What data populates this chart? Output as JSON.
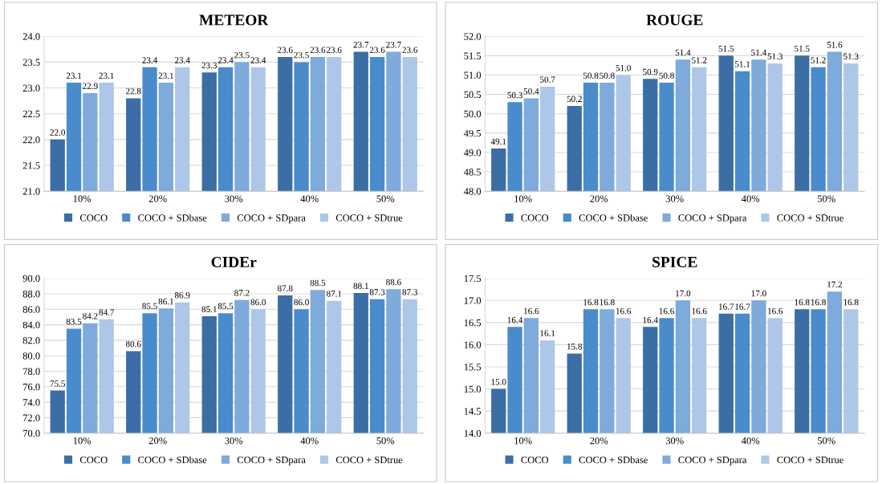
{
  "chart_data": [
    {
      "type": "bar",
      "title": "METEOR",
      "categories": [
        "10%",
        "20%",
        "30%",
        "40%",
        "50%"
      ],
      "grid": "y",
      "legend": "bottom",
      "ylim": [
        21.0,
        24.0
      ],
      "yticks": [
        {
          "value": 21.0,
          "label": "21.0"
        },
        {
          "value": 21.5,
          "label": "21.5"
        },
        {
          "value": 22.0,
          "label": "22.0"
        },
        {
          "value": 22.5,
          "label": "22.5"
        },
        {
          "value": 23.0,
          "label": "23.0"
        },
        {
          "value": 23.5,
          "label": "23.5"
        },
        {
          "value": 24.0,
          "label": "24.0"
        }
      ],
      "series": [
        {
          "name": "COCO",
          "color": "#3b6ea5",
          "values": [
            22.0,
            22.8,
            23.3,
            23.6,
            23.7
          ],
          "value_labels": [
            "22.0",
            "22.8",
            "23.3",
            "23.6",
            "23.7"
          ]
        },
        {
          "name": "COCO + SDbase",
          "color": "#4a8bcb",
          "values": [
            23.1,
            23.4,
            23.4,
            23.5,
            23.6
          ],
          "value_labels": [
            "23.1",
            "23.4",
            "23.4",
            "23.5",
            "23.6"
          ]
        },
        {
          "name": "COCO + SDpara",
          "color": "#7eaadc",
          "values": [
            22.9,
            23.1,
            23.5,
            23.6,
            23.7
          ],
          "value_labels": [
            "22.9",
            "23.1",
            "23.5",
            "23.6",
            "23.7"
          ]
        },
        {
          "name": "COCO + SDtrue",
          "color": "#aec7e8",
          "values": [
            23.1,
            23.4,
            23.4,
            23.6,
            23.6
          ],
          "value_labels": [
            "23.1",
            "23.4",
            "23.4",
            "23.6",
            "23.6"
          ]
        }
      ]
    },
    {
      "type": "bar",
      "title": "ROUGE",
      "categories": [
        "10%",
        "20%",
        "30%",
        "40%",
        "50%"
      ],
      "grid": "y",
      "legend": "bottom",
      "ylim": [
        48.0,
        52.0
      ],
      "yticks": [
        {
          "value": 48.0,
          "label": "48.0"
        },
        {
          "value": 48.5,
          "label": "48.5"
        },
        {
          "value": 49.0,
          "label": "49.0"
        },
        {
          "value": 49.5,
          "label": "49.5"
        },
        {
          "value": 50.0,
          "label": "50.0"
        },
        {
          "value": 50.5,
          "label": "50.5"
        },
        {
          "value": 51.0,
          "label": "51.0"
        },
        {
          "value": 51.5,
          "label": "51.5"
        },
        {
          "value": 52.0,
          "label": "52.0"
        }
      ],
      "series": [
        {
          "name": "COCO",
          "color": "#3b6ea5",
          "values": [
            49.1,
            50.2,
            50.9,
            51.5,
            51.5
          ],
          "value_labels": [
            "49.1",
            "50.2",
            "50.9",
            "51.5",
            "51.5"
          ]
        },
        {
          "name": "COCO + SDbase",
          "color": "#4a8bcb",
          "values": [
            50.3,
            50.8,
            50.8,
            51.1,
            51.2
          ],
          "value_labels": [
            "50.3",
            "50.8",
            "50.8",
            "51.1",
            "51.2"
          ]
        },
        {
          "name": "COCO + SDpara",
          "color": "#7eaadc",
          "values": [
            50.4,
            50.8,
            51.4,
            51.4,
            51.6
          ],
          "value_labels": [
            "50.4",
            "50.8",
            "51.4",
            "51.4",
            "51.6"
          ]
        },
        {
          "name": "COCO + SDtrue",
          "color": "#aec7e8",
          "values": [
            50.7,
            51.0,
            51.2,
            51.3,
            51.3
          ],
          "value_labels": [
            "50.7",
            "51.0",
            "51.2",
            "51.3",
            "51.3"
          ]
        }
      ]
    },
    {
      "type": "bar",
      "title": "CIDEr",
      "categories": [
        "10%",
        "20%",
        "30%",
        "40%",
        "50%"
      ],
      "grid": "y",
      "legend": "bottom",
      "ylim": [
        70.0,
        90.0
      ],
      "yticks": [
        {
          "value": 70.0,
          "label": "70.0"
        },
        {
          "value": 72.0,
          "label": "72.0"
        },
        {
          "value": 74.0,
          "label": "74.0"
        },
        {
          "value": 76.0,
          "label": "76.0"
        },
        {
          "value": 78.0,
          "label": "78.0"
        },
        {
          "value": 80.0,
          "label": "80.0"
        },
        {
          "value": 82.0,
          "label": "82.0"
        },
        {
          "value": 84.0,
          "label": "84.0"
        },
        {
          "value": 86.0,
          "label": "86.0"
        },
        {
          "value": 88.0,
          "label": "88.0"
        },
        {
          "value": 90.0,
          "label": "90.0"
        }
      ],
      "series": [
        {
          "name": "COCO",
          "color": "#3b6ea5",
          "values": [
            75.5,
            80.6,
            85.1,
            87.8,
            88.1
          ],
          "value_labels": [
            "75.5",
            "80.6",
            "85.1",
            "87.8",
            "88.1"
          ]
        },
        {
          "name": "COCO + SDbase",
          "color": "#4a8bcb",
          "values": [
            83.5,
            85.5,
            85.5,
            86.0,
            87.3
          ],
          "value_labels": [
            "83.5",
            "85.5",
            "85.5",
            "86.0",
            "87.3"
          ]
        },
        {
          "name": "COCO + SDpara",
          "color": "#7eaadc",
          "values": [
            84.2,
            86.1,
            87.2,
            88.5,
            88.6
          ],
          "value_labels": [
            "84.2",
            "86.1",
            "87.2",
            "88.5",
            "88.6"
          ]
        },
        {
          "name": "COCO + SDtrue",
          "color": "#aec7e8",
          "values": [
            84.7,
            86.9,
            86.0,
            87.1,
            87.3
          ],
          "value_labels": [
            "84.7",
            "86.9",
            "86.0",
            "87.1",
            "87.3"
          ]
        }
      ]
    },
    {
      "type": "bar",
      "title": "SPICE",
      "categories": [
        "10%",
        "20%",
        "30%",
        "40%",
        "50%"
      ],
      "grid": "y",
      "legend": "bottom",
      "ylim": [
        14.0,
        17.5
      ],
      "yticks": [
        {
          "value": 14.0,
          "label": "14.0"
        },
        {
          "value": 14.5,
          "label": "14.5"
        },
        {
          "value": 15.0,
          "label": "15.0"
        },
        {
          "value": 15.5,
          "label": "15.5"
        },
        {
          "value": 16.0,
          "label": "16.0"
        },
        {
          "value": 16.5,
          "label": "16.5"
        },
        {
          "value": 17.0,
          "label": "17.0"
        },
        {
          "value": 17.5,
          "label": "17.5"
        }
      ],
      "series": [
        {
          "name": "COCO",
          "color": "#3b6ea5",
          "values": [
            15.0,
            15.8,
            16.4,
            16.7,
            16.8
          ],
          "value_labels": [
            "15.0",
            "15.8",
            "16.4",
            "16.7",
            "16.8"
          ]
        },
        {
          "name": "COCO + SDbase",
          "color": "#4a8bcb",
          "values": [
            16.4,
            16.8,
            16.6,
            16.7,
            16.8
          ],
          "value_labels": [
            "16.4",
            "16.8",
            "16.6",
            "16.7",
            "16.8"
          ]
        },
        {
          "name": "COCO + SDpara",
          "color": "#7eaadc",
          "values": [
            16.6,
            16.8,
            17.0,
            17.0,
            17.2
          ],
          "value_labels": [
            "16.6",
            "16.8",
            "17.0",
            "17.0",
            "17.2"
          ]
        },
        {
          "name": "COCO + SDtrue",
          "color": "#aec7e8",
          "values": [
            16.1,
            16.6,
            16.6,
            16.6,
            16.8
          ],
          "value_labels": [
            "16.1",
            "16.6",
            "16.6",
            "16.6",
            "16.8"
          ]
        }
      ]
    }
  ]
}
